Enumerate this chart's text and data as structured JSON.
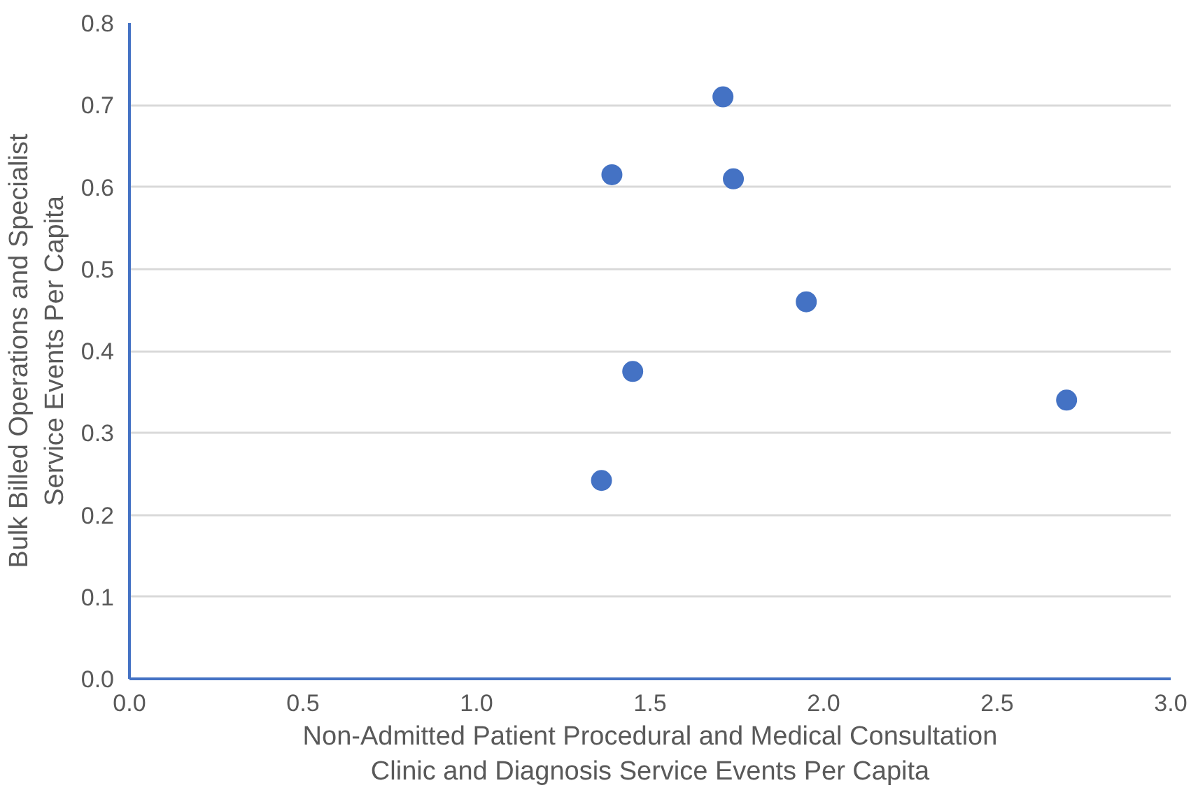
{
  "chart_data": {
    "type": "scatter",
    "xlabel": "Non-Admitted Patient Procedural and Medical Consultation\nClinic and Diagnosis Service Events Per Capita",
    "ylabel": "Bulk Billed Operations and Specialist\nService Events Per Capita",
    "x": [
      1.71,
      1.39,
      1.74,
      1.95,
      1.45,
      2.7,
      1.36
    ],
    "series": [
      {
        "color": "#4472c4",
        "values": [
          0.71,
          0.615,
          0.61,
          0.46,
          0.375,
          0.34,
          0.242
        ]
      }
    ],
    "xlim": [
      0.0,
      3.0
    ],
    "ylim": [
      0.0,
      0.8
    ],
    "xticks": [
      {
        "value": 0,
        "label": "0.0"
      },
      0.5,
      {
        "value": 1,
        "label": "1.0"
      },
      1.5,
      {
        "value": 2,
        "label": "2.0"
      },
      2.5,
      {
        "value": 3,
        "label": "3.0"
      }
    ],
    "yticks": [
      {
        "value": 0,
        "label": "0.0"
      },
      0.1,
      0.2,
      0.3,
      0.4,
      0.5,
      0.6,
      0.7,
      0.8
    ],
    "grid": "y",
    "marker": "circle"
  }
}
